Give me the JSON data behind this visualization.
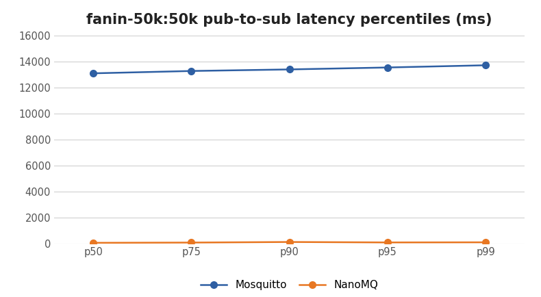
{
  "title": "fanin-50k:50k pub-to-sub latency percentiles (ms)",
  "categories": [
    "p50",
    "p75",
    "p90",
    "p95",
    "p99"
  ],
  "mosquitto": [
    13100,
    13280,
    13400,
    13550,
    13720
  ],
  "nanomq": [
    55,
    75,
    120,
    85,
    95
  ],
  "mosquitto_color": "#2E5FA3",
  "nanomq_color": "#E87722",
  "mosquitto_label": "Mosquitto",
  "nanomq_label": "NanoMQ",
  "ylim": [
    0,
    16000
  ],
  "yticks": [
    0,
    2000,
    4000,
    6000,
    8000,
    10000,
    12000,
    14000,
    16000
  ],
  "bg_color": "#ffffff",
  "plot_bg_color": "#ffffff",
  "grid_color": "#d0d0d0",
  "marker_size": 7,
  "linewidth": 1.8,
  "title_fontsize": 15,
  "legend_fontsize": 11,
  "tick_fontsize": 10.5
}
